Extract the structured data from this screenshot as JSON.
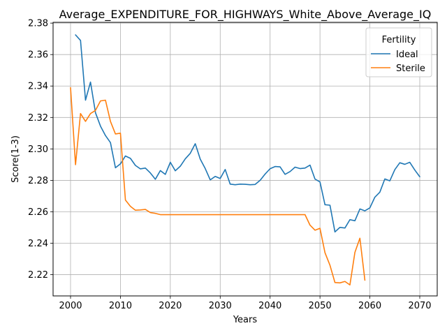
{
  "chart_data": {
    "type": "line",
    "title": "Average_EXPENDITURE_FOR_HIGHWAYS_White_Above_Average_IQ",
    "xlabel": "Years",
    "ylabel": "Score(1-3)",
    "xlim": [
      1996.5,
      2073.5
    ],
    "ylim": [
      2.2065,
      2.3805
    ],
    "xticks": [
      2000,
      2010,
      2020,
      2030,
      2040,
      2050,
      2060,
      2070
    ],
    "yticks": [
      2.22,
      2.24,
      2.26,
      2.28,
      2.3,
      2.32,
      2.34,
      2.36,
      2.38
    ],
    "ytick_labels": [
      "2.22",
      "2.24",
      "2.26",
      "2.28",
      "2.30",
      "2.32",
      "2.34",
      "2.36",
      "2.38"
    ],
    "grid": true,
    "legend": {
      "title": "Fertility",
      "placement": "top-right"
    },
    "series": [
      {
        "name": "Ideal",
        "color": "#1f77b4",
        "x": [
          2001,
          2002,
          2003,
          2004,
          2005,
          2006,
          2007,
          2008,
          2009,
          2010,
          2011,
          2012,
          2013,
          2014,
          2015,
          2016,
          2017,
          2018,
          2019,
          2020,
          2021,
          2022,
          2023,
          2024,
          2025,
          2026,
          2027,
          2028,
          2029,
          2030,
          2031,
          2032,
          2033,
          2034,
          2035,
          2036,
          2037,
          2038,
          2039,
          2040,
          2041,
          2042,
          2043,
          2044,
          2045,
          2046,
          2047,
          2048,
          2049,
          2050,
          2051,
          2052,
          2053,
          2054,
          2055,
          2056,
          2057,
          2058,
          2059,
          2060,
          2061,
          2062,
          2063,
          2064,
          2065,
          2066,
          2067,
          2068,
          2069,
          2070
        ],
        "y": [
          2.3725,
          2.369,
          2.331,
          2.3425,
          2.323,
          2.3145,
          2.3085,
          2.304,
          2.288,
          2.2905,
          2.2955,
          2.294,
          2.2895,
          2.2873,
          2.2878,
          2.2847,
          2.2807,
          2.2862,
          2.2838,
          2.2915,
          2.2861,
          2.289,
          2.2937,
          2.2972,
          2.3033,
          2.2935,
          2.2875,
          2.2803,
          2.2825,
          2.2812,
          2.2869,
          2.2776,
          2.2772,
          2.2776,
          2.2775,
          2.2772,
          2.2774,
          2.28,
          2.284,
          2.2874,
          2.2888,
          2.2886,
          2.2838,
          2.2856,
          2.2884,
          2.2875,
          2.2878,
          2.2897,
          2.2808,
          2.279,
          2.2645,
          2.2642,
          2.2472,
          2.2501,
          2.2497,
          2.255,
          2.2543,
          2.2618,
          2.2606,
          2.2625,
          2.2693,
          2.2725,
          2.2809,
          2.2797,
          2.2868,
          2.2912,
          2.2902,
          2.2915,
          2.2866,
          2.2823
        ]
      },
      {
        "name": "Sterile",
        "color": "#ff7f0e",
        "x": [
          2000,
          2001,
          2002,
          2003,
          2004,
          2005,
          2006,
          2007,
          2008,
          2009,
          2010,
          2011,
          2012,
          2013,
          2014,
          2015,
          2016,
          2017,
          2018,
          2019,
          2020,
          2021,
          2022,
          2023,
          2024,
          2025,
          2026,
          2027,
          2028,
          2029,
          2030,
          2031,
          2032,
          2033,
          2034,
          2035,
          2036,
          2037,
          2038,
          2039,
          2040,
          2041,
          2042,
          2043,
          2044,
          2045,
          2046,
          2047,
          2048,
          2049,
          2050,
          2051,
          2052,
          2053,
          2054,
          2055,
          2056,
          2057,
          2058,
          2059
        ],
        "y": [
          2.339,
          2.29,
          2.3225,
          2.3175,
          2.3225,
          2.3245,
          2.3305,
          2.331,
          2.3175,
          2.3095,
          2.31,
          2.2675,
          2.2635,
          2.261,
          2.2612,
          2.2615,
          2.2595,
          2.259,
          2.2582,
          2.2582,
          2.2582,
          2.2582,
          2.2582,
          2.2582,
          2.2582,
          2.2582,
          2.2582,
          2.2582,
          2.2582,
          2.2582,
          2.2582,
          2.2582,
          2.2582,
          2.2582,
          2.2582,
          2.2582,
          2.2582,
          2.2582,
          2.2582,
          2.2582,
          2.2582,
          2.2582,
          2.2582,
          2.2582,
          2.2582,
          2.2582,
          2.2582,
          2.2582,
          2.2515,
          2.2483,
          2.2495,
          2.234,
          2.226,
          2.215,
          2.2148,
          2.2157,
          2.2135,
          2.2342,
          2.2432,
          2.2165
        ]
      }
    ]
  }
}
